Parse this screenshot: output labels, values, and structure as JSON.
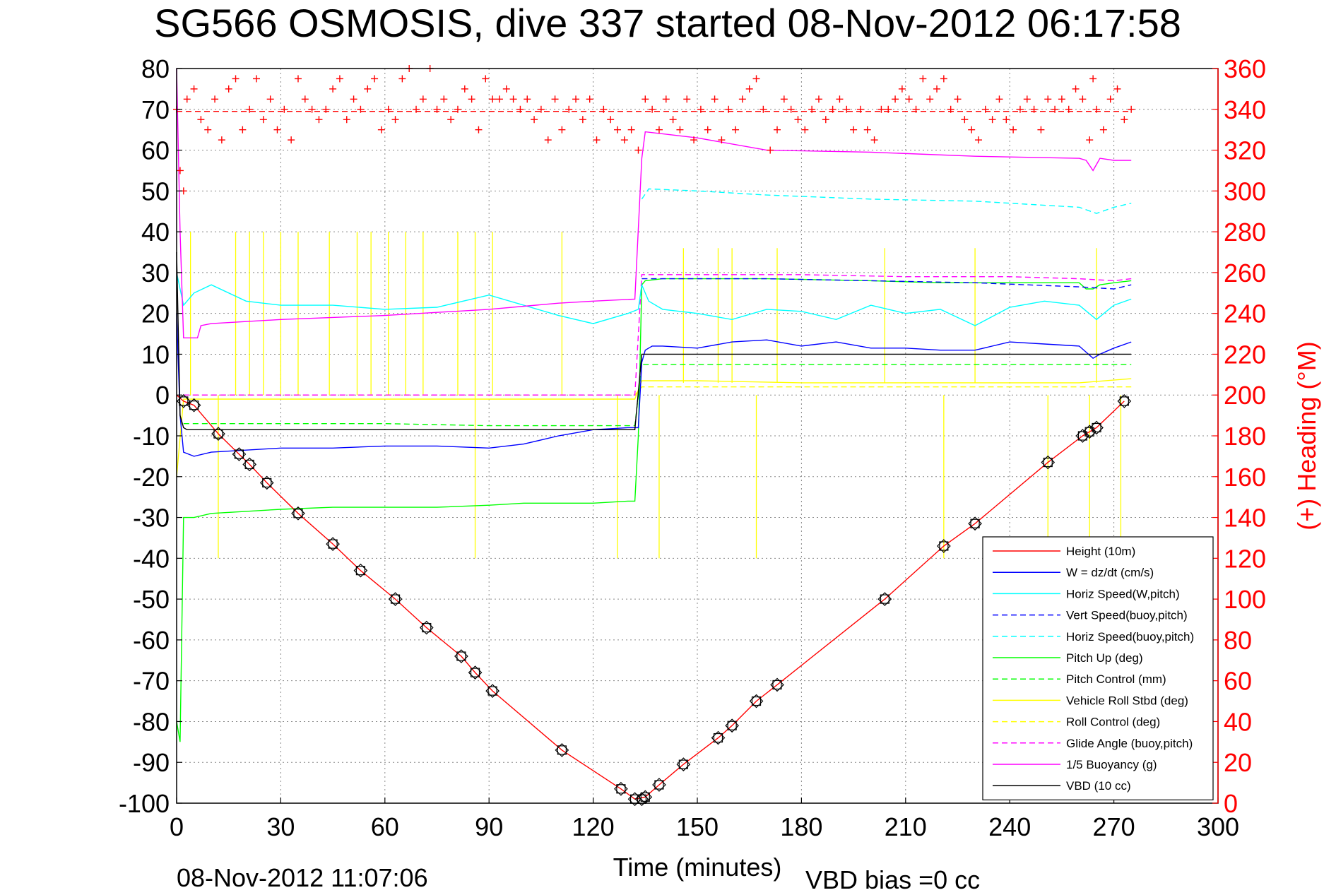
{
  "chart_data": {
    "type": "line",
    "title": "SG566 OSMOSIS, dive 337 started 08-Nov-2012 06:17:58",
    "xlabel": "Time (minutes)",
    "ylabel": "",
    "y2label": "(+) Heading (°M)",
    "xlim": [
      0,
      300
    ],
    "ylim": [
      -100,
      80
    ],
    "y2lim": [
      0,
      360
    ],
    "x_ticks": [
      0,
      30,
      60,
      90,
      120,
      150,
      180,
      210,
      240,
      270,
      300
    ],
    "y_ticks": [
      80,
      70,
      60,
      50,
      40,
      30,
      20,
      10,
      0,
      -10,
      -20,
      -30,
      -40,
      -50,
      -60,
      -70,
      -80,
      -90,
      -100
    ],
    "y2_ticks": [
      360,
      340,
      320,
      300,
      280,
      260,
      240,
      220,
      200,
      180,
      160,
      140,
      120,
      100,
      80,
      60,
      40,
      20,
      0
    ],
    "grid": true,
    "legend_position": "bottom-right",
    "footer_timestamp": "08-Nov-2012 11:07:06",
    "footer_note": "VBD bias =0 cc",
    "colors": {
      "heading": "#ff0000",
      "height": "#ff0000",
      "w": "#0000ff",
      "horiz_w": "#00ffff",
      "pitch": "#00ff00",
      "roll": "#ffff00",
      "glide": "#ff00ff",
      "buoyancy": "#ff00ff",
      "vbd": "#000000"
    },
    "legend": [
      {
        "name": "Height (10m)",
        "color": "#ff0000",
        "dash": false
      },
      {
        "name": "W = dz/dt (cm/s)",
        "color": "#0000ff",
        "dash": false
      },
      {
        "name": "Horiz Speed(W,pitch)",
        "color": "#00ffff",
        "dash": false
      },
      {
        "name": "Vert Speed(buoy,pitch)",
        "color": "#0000ff",
        "dash": true
      },
      {
        "name": "Horiz Speed(buoy,pitch)",
        "color": "#00ffff",
        "dash": true
      },
      {
        "name": "Pitch Up (deg)",
        "color": "#00ff00",
        "dash": false
      },
      {
        "name": "Pitch Control (mm)",
        "color": "#00ff00",
        "dash": true
      },
      {
        "name": "Vehicle Roll Stbd (deg)",
        "color": "#ffff00",
        "dash": false
      },
      {
        "name": "Roll Control (deg)",
        "color": "#ffff00",
        "dash": true
      },
      {
        "name": "Glide Angle (buoy,pitch)",
        "color": "#ff00ff",
        "dash": true
      },
      {
        "name": "1/5 Buoyancy (g)",
        "color": "#ff00ff",
        "dash": false
      },
      {
        "name": "VBD (10 cc)",
        "color": "#000000",
        "dash": false
      }
    ],
    "series": [
      {
        "key": "height",
        "name": "Height (10m)",
        "axis": "left",
        "color": "#ff0000",
        "dash": false,
        "x": [
          0,
          2,
          5,
          12,
          18,
          21,
          26,
          35,
          45,
          53,
          63,
          72,
          82,
          86,
          91,
          111,
          128,
          132,
          135,
          139,
          146,
          156,
          160,
          167,
          173,
          204,
          221,
          230,
          251,
          261,
          263,
          265,
          273
        ],
        "y": [
          0,
          -1.5,
          -2.5,
          -9.5,
          -14.5,
          -17,
          -21.5,
          -29,
          -36.5,
          -43,
          -50,
          -57,
          -64,
          -68,
          -72.5,
          -87,
          -96.5,
          -99,
          -98.5,
          -95.5,
          -90.5,
          -84,
          -81,
          -75,
          -71,
          -50,
          -37,
          -31.5,
          -16.5,
          -10,
          -9,
          -8,
          -1.5
        ]
      },
      {
        "key": "height_markers",
        "name": "",
        "axis": "left",
        "color": "#000000",
        "markers": true,
        "x": [
          2,
          5,
          12,
          18,
          21,
          26,
          35,
          45,
          53,
          63,
          72,
          82,
          86,
          91,
          111,
          128,
          132,
          134,
          135,
          139,
          146,
          156,
          160,
          167,
          173,
          204,
          221,
          230,
          251,
          261,
          263,
          265,
          273
        ],
        "y": [
          -1.5,
          -2.5,
          -9.5,
          -14.5,
          -17,
          -21.5,
          -29,
          -36.5,
          -43,
          -50,
          -57,
          -64,
          -68,
          -72.5,
          -87,
          -96.5,
          -99,
          -99,
          -98.5,
          -95.5,
          -90.5,
          -84,
          -81,
          -75,
          -71,
          -50,
          -37,
          -31.5,
          -16.5,
          -10,
          -9,
          -8,
          -1.5
        ]
      },
      {
        "key": "w",
        "name": "W = dz/dt (cm/s)",
        "axis": "left",
        "color": "#0000ff",
        "dash": false,
        "x": [
          0,
          1,
          2,
          5,
          10,
          20,
          30,
          45,
          60,
          75,
          90,
          100,
          110,
          120,
          130,
          133,
          134,
          135,
          137,
          140,
          150,
          160,
          170,
          180,
          190,
          200,
          210,
          220,
          230,
          240,
          250,
          260,
          264,
          266,
          270,
          275
        ],
        "y": [
          20,
          -5,
          -14,
          -15,
          -14,
          -13.5,
          -13,
          -13,
          -12.5,
          -12.5,
          -13,
          -12,
          -10,
          -8.5,
          -8,
          -8,
          8,
          11,
          12,
          12,
          11.5,
          13,
          13.5,
          12,
          13,
          11.5,
          11.5,
          11,
          11,
          13,
          12.5,
          12,
          9,
          10,
          11.5,
          13
        ]
      },
      {
        "key": "horiz_w",
        "name": "Horiz Speed(W,pitch)",
        "axis": "left",
        "color": "#00ffff",
        "dash": false,
        "x": [
          0,
          2,
          5,
          10,
          20,
          30,
          45,
          60,
          75,
          90,
          100,
          110,
          120,
          130,
          133,
          134,
          136,
          140,
          150,
          160,
          170,
          180,
          190,
          200,
          210,
          220,
          230,
          240,
          250,
          260,
          265,
          270,
          275
        ],
        "y": [
          30,
          22,
          25,
          27,
          23,
          22,
          22,
          21,
          21.5,
          24.5,
          22,
          19.5,
          17.5,
          20,
          21,
          27,
          23,
          21,
          20,
          18.5,
          21,
          20.5,
          18.5,
          22,
          20,
          21,
          17,
          21.5,
          23,
          22,
          18.5,
          22,
          23.5
        ]
      },
      {
        "key": "vert_buoy",
        "name": "Vert Speed(buoy,pitch)",
        "axis": "left",
        "color": "#0000ff",
        "dash": true,
        "x": [
          134,
          136,
          150,
          170,
          200,
          230,
          260,
          270,
          275
        ],
        "y": [
          28.5,
          28.5,
          28.5,
          28.5,
          28,
          27.5,
          26.5,
          26,
          27
        ]
      },
      {
        "key": "horiz_buoy",
        "name": "Horiz Speed(buoy,pitch)",
        "axis": "left",
        "color": "#00ffff",
        "dash": true,
        "x": [
          134,
          136,
          150,
          170,
          200,
          230,
          260,
          265,
          270,
          275
        ],
        "y": [
          48,
          50.5,
          50,
          49,
          48,
          47.5,
          46,
          44.5,
          46,
          47
        ]
      },
      {
        "key": "pitch",
        "name": "Pitch Up (deg)",
        "axis": "left",
        "color": "#00ff00",
        "dash": false,
        "x": [
          0,
          1,
          2,
          5,
          10,
          20,
          30,
          45,
          60,
          75,
          90,
          100,
          110,
          120,
          130,
          132,
          133,
          134,
          135,
          140,
          150,
          170,
          200,
          220,
          240,
          260,
          262,
          264,
          266,
          270,
          275
        ],
        "y": [
          -80,
          -85,
          -30,
          -30,
          -29,
          -28.5,
          -28,
          -27.5,
          -27.5,
          -27.5,
          -27,
          -26.5,
          -26.5,
          -26.5,
          -26,
          -26,
          -10,
          27,
          28,
          28.5,
          28.5,
          28.5,
          28,
          27.5,
          27.5,
          27.5,
          26,
          26,
          27,
          27.5,
          28
        ]
      },
      {
        "key": "pitch_ctrl",
        "name": "Pitch Control (mm)",
        "axis": "left",
        "color": "#00ff00",
        "dash": true,
        "x": [
          2,
          10,
          30,
          60,
          90,
          120,
          132,
          134,
          136,
          150,
          180,
          210,
          240,
          260,
          275
        ],
        "y": [
          -7,
          -7,
          -7,
          -7,
          -7.5,
          -7.5,
          -7.5,
          7.5,
          7.5,
          7.5,
          7.5,
          7.5,
          7.5,
          7.5,
          7.5
        ]
      },
      {
        "key": "roll",
        "name": "Vehicle Roll Stbd (deg)",
        "axis": "left",
        "color": "#ffff00",
        "dash": false,
        "x": [
          0,
          2,
          5,
          10,
          30,
          60,
          90,
          120,
          132,
          134,
          136,
          150,
          180,
          210,
          240,
          260,
          275
        ],
        "y": [
          -20,
          -1,
          -1,
          -1,
          -1,
          -1,
          -1,
          -1,
          -1,
          3.5,
          3.5,
          3.5,
          3,
          3,
          3,
          3,
          4
        ]
      },
      {
        "key": "roll_ctrl",
        "name": "Roll Control (deg)",
        "axis": "left",
        "color": "#ffff00",
        "dash": true,
        "x": [
          2,
          30,
          60,
          90,
          120,
          132,
          134,
          150,
          180,
          210,
          240,
          270,
          275
        ],
        "y": [
          0,
          0,
          0,
          0,
          0,
          0,
          2,
          2,
          2,
          2,
          2,
          2,
          2
        ]
      },
      {
        "key": "roll_spikes_up",
        "name": "",
        "axis": "left",
        "color": "#ffff00",
        "dash": false,
        "spikes_from": 0,
        "x": [
          4,
          17,
          21,
          25,
          30,
          35,
          44,
          52,
          56,
          61,
          66,
          71,
          81,
          86,
          91,
          111
        ],
        "y": [
          40,
          40,
          40,
          40,
          40,
          40,
          40,
          40,
          40,
          40,
          40,
          40,
          40,
          40,
          40,
          40
        ]
      },
      {
        "key": "roll_spikes_down",
        "name": "",
        "axis": "left",
        "color": "#ffff00",
        "dash": false,
        "spikes_from": 0,
        "x": [
          12,
          86,
          127,
          139,
          167,
          221,
          251,
          263,
          272
        ],
        "y": [
          -40,
          -40,
          -40,
          -40,
          -40,
          -40,
          -40,
          -40,
          -40
        ]
      },
      {
        "key": "roll_spikes_up2",
        "name": "",
        "axis": "left",
        "color": "#ffff00",
        "dash": false,
        "spikes_from": 3,
        "x": [
          146,
          156,
          160,
          173,
          204,
          230,
          265
        ],
        "y": [
          36,
          36,
          36,
          36,
          36,
          36,
          36
        ]
      },
      {
        "key": "glide",
        "name": "Glide Angle (buoy,pitch)",
        "axis": "left",
        "color": "#ff00ff",
        "dash": true,
        "x": [
          2,
          30,
          60,
          90,
          120,
          132,
          134,
          136,
          150,
          180,
          210,
          240,
          260,
          270,
          275
        ],
        "y": [
          0,
          0,
          0,
          0,
          0,
          0,
          29.5,
          29.5,
          29.5,
          29.5,
          29,
          29,
          28.5,
          28,
          28.5
        ]
      },
      {
        "key": "buoyancy",
        "name": "1/5 Buoyancy (g)",
        "axis": "left",
        "color": "#ff00ff",
        "dash": false,
        "x": [
          0,
          1,
          2,
          6,
          7,
          10,
          30,
          60,
          90,
          110,
          120,
          132,
          134,
          135,
          140,
          150,
          170,
          200,
          230,
          260,
          262,
          264,
          266,
          270,
          275
        ],
        "y": [
          80,
          40,
          14,
          14,
          17,
          17.5,
          18.5,
          19.5,
          21,
          22.5,
          23,
          23.5,
          58,
          64.5,
          64,
          63,
          60,
          59.5,
          58.5,
          58,
          57.5,
          55,
          58,
          57.5,
          57.5
        ]
      },
      {
        "key": "vbd",
        "name": "VBD (10 cc)",
        "axis": "left",
        "color": "#000000",
        "dash": false,
        "x": [
          0,
          1,
          2,
          3,
          30,
          60,
          90,
          120,
          132,
          134,
          135,
          140,
          150,
          180,
          210,
          240,
          270,
          275
        ],
        "y": [
          35,
          -5,
          -8,
          -8.5,
          -8.5,
          -8.5,
          -8.5,
          -8.5,
          -8.5,
          10,
          10,
          10,
          10,
          10,
          10,
          10,
          10,
          10
        ]
      },
      {
        "key": "heading",
        "name": "",
        "axis": "right",
        "color": "#ff0000",
        "markers_plus": true,
        "x": [
          0,
          1,
          2,
          3,
          5,
          7,
          9,
          11,
          13,
          15,
          17,
          19,
          21,
          23,
          25,
          27,
          29,
          31,
          33,
          35,
          37,
          39,
          41,
          43,
          45,
          47,
          49,
          51,
          53,
          55,
          57,
          59,
          61,
          63,
          65,
          67,
          69,
          71,
          73,
          75,
          77,
          79,
          81,
          83,
          85,
          87,
          89,
          91,
          93,
          95,
          97,
          99,
          101,
          103,
          105,
          107,
          109,
          111,
          113,
          115,
          117,
          119,
          121,
          123,
          125,
          127,
          129,
          131,
          133,
          135,
          137,
          139,
          141,
          143,
          145,
          147,
          149,
          151,
          153,
          155,
          157,
          159,
          161,
          163,
          165,
          167,
          169,
          171,
          173,
          175,
          177,
          179,
          181,
          183,
          185,
          187,
          189,
          191,
          193,
          195,
          197,
          199,
          201,
          203,
          205,
          207,
          209,
          211,
          213,
          215,
          217,
          219,
          221,
          223,
          225,
          227,
          229,
          231,
          233,
          235,
          237,
          239,
          241,
          243,
          245,
          247,
          249,
          251,
          253,
          255,
          257,
          259,
          261,
          263,
          264,
          265,
          267,
          269,
          271,
          273,
          275
        ],
        "y": [
          340,
          310,
          300,
          345,
          350,
          335,
          330,
          345,
          325,
          350,
          355,
          330,
          340,
          355,
          335,
          345,
          330,
          340,
          325,
          355,
          345,
          340,
          335,
          340,
          350,
          355,
          335,
          345,
          340,
          350,
          355,
          330,
          340,
          335,
          355,
          360,
          340,
          345,
          360,
          340,
          345,
          335,
          340,
          350,
          345,
          330,
          355,
          345,
          345,
          350,
          345,
          340,
          345,
          335,
          340,
          325,
          345,
          330,
          340,
          345,
          335,
          345,
          325,
          340,
          335,
          330,
          325,
          330,
          320,
          345,
          340,
          330,
          345,
          335,
          330,
          345,
          325,
          340,
          330,
          345,
          325,
          340,
          330,
          345,
          350,
          355,
          340,
          320,
          330,
          345,
          340,
          335,
          330,
          340,
          345,
          335,
          340,
          345,
          340,
          330,
          340,
          330,
          325,
          340,
          340,
          345,
          350,
          345,
          340,
          355,
          345,
          350,
          355,
          340,
          345,
          335,
          330,
          325,
          340,
          335,
          345,
          335,
          330,
          340,
          345,
          340,
          330,
          345,
          340,
          345,
          340,
          350,
          345,
          325,
          355,
          340,
          330,
          345,
          350,
          335,
          340
        ]
      },
      {
        "key": "heading_mean",
        "name": "",
        "axis": "right",
        "color": "#ff0000",
        "dash": true,
        "x": [
          0,
          275
        ],
        "y": [
          339,
          339
        ]
      }
    ]
  }
}
